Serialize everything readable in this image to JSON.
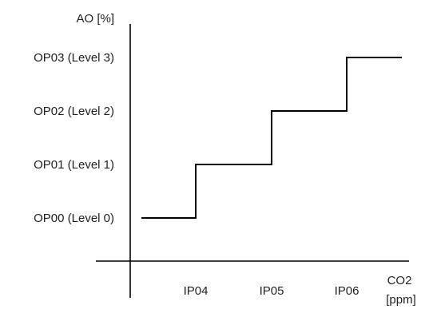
{
  "chart_data": {
    "type": "line",
    "line_shape": "step",
    "ylabel": "AO [%]",
    "xlabel_line1": "CO2",
    "xlabel_line2": "[ppm]",
    "x_ticks": [
      "IP04",
      "IP05",
      "IP06"
    ],
    "y_ticks": [
      "OP00 (Level 0)",
      "OP01 (Level 1)",
      "OP02 (Level 2)",
      "OP03 (Level 3)"
    ],
    "series": [
      {
        "points": [
          {
            "x": "start",
            "y": "OP00 (Level 0)"
          },
          {
            "x": "IP04",
            "y": "OP00 (Level 0)"
          },
          {
            "x": "IP04",
            "y": "OP01 (Level 1)"
          },
          {
            "x": "IP05",
            "y": "OP01 (Level 1)"
          },
          {
            "x": "IP05",
            "y": "OP02 (Level 2)"
          },
          {
            "x": "IP06",
            "y": "OP02 (Level 2)"
          },
          {
            "x": "IP06",
            "y": "OP03 (Level 3)"
          },
          {
            "x": "end",
            "y": "OP03 (Level 3)"
          }
        ]
      }
    ],
    "grid": false,
    "legend": "none",
    "colors": {
      "line": "#000000",
      "text": "#222222"
    }
  }
}
